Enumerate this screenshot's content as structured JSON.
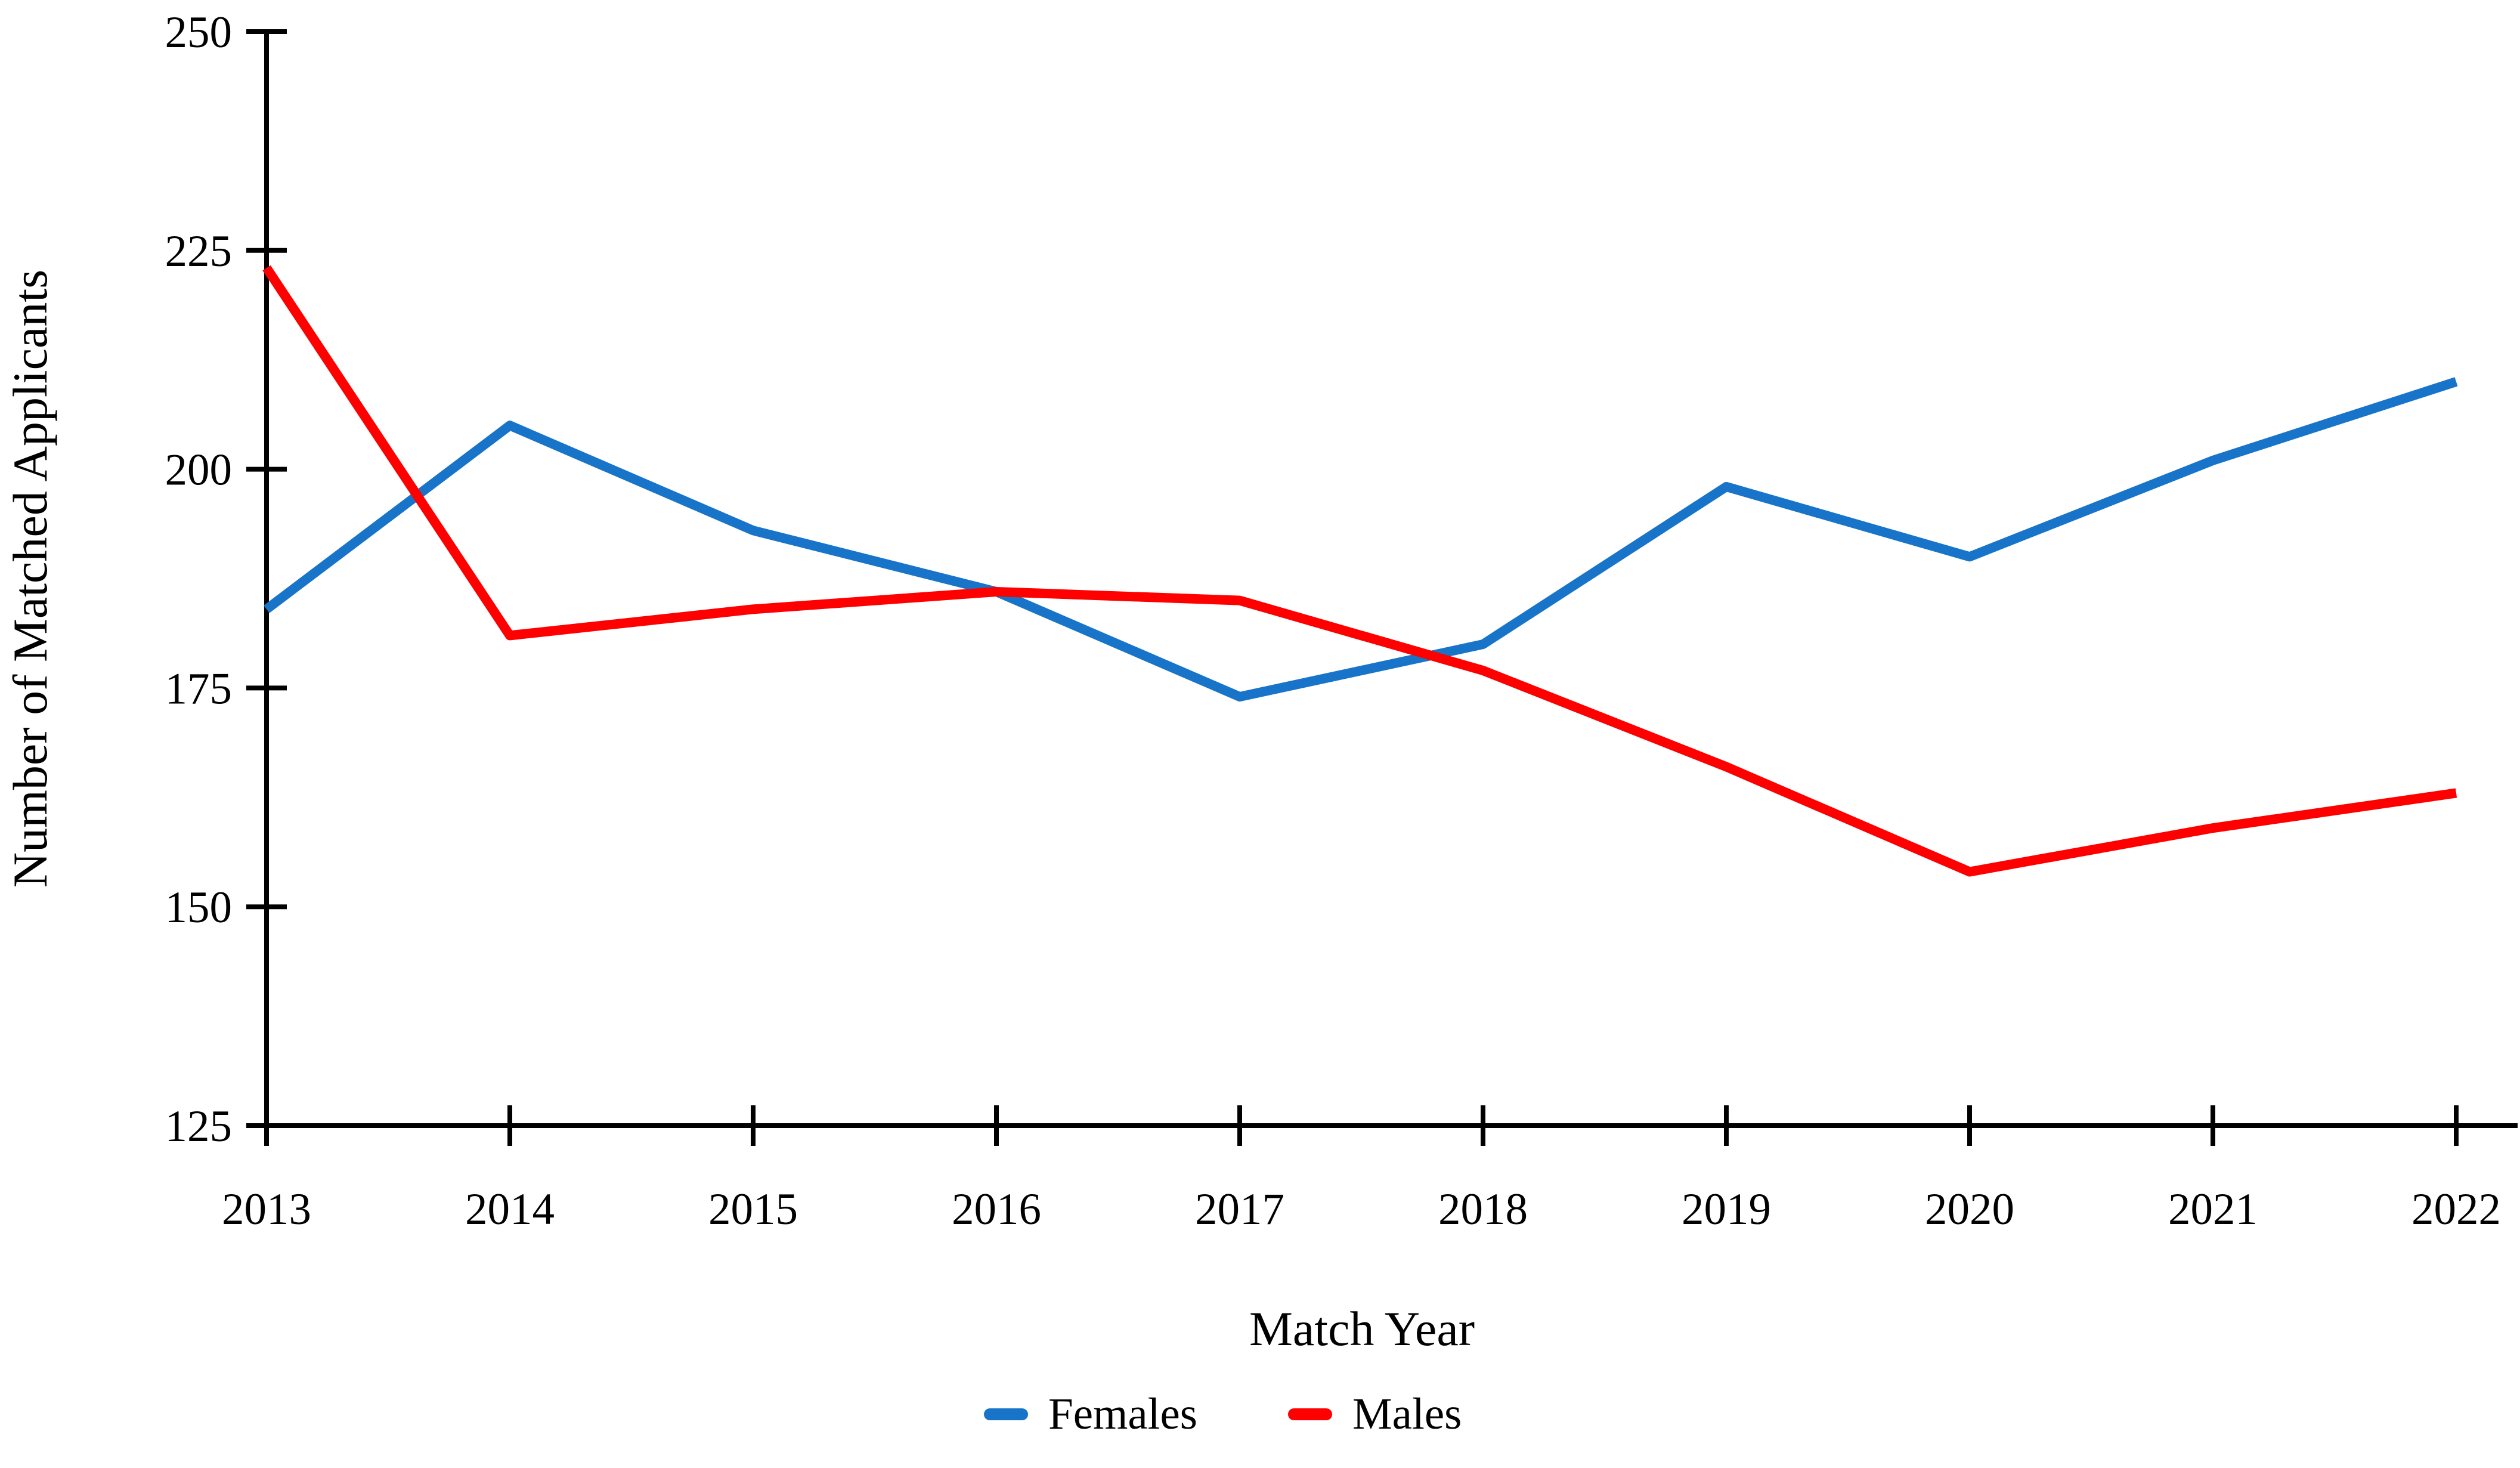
{
  "chart_data": {
    "type": "line",
    "title": "",
    "xlabel": "Match Year",
    "ylabel": "Number of Matched Applicants",
    "categories": [
      "2013",
      "2014",
      "2015",
      "2016",
      "2017",
      "2018",
      "2019",
      "2020",
      "2021",
      "2022"
    ],
    "series": [
      {
        "name": "Females",
        "color": "#1874C8",
        "values": [
          184,
          205,
          193,
          186,
          174,
          180,
          198,
          190,
          201,
          210
        ]
      },
      {
        "name": "Males",
        "color": "#FE0000",
        "values": [
          223,
          181,
          184,
          186,
          185,
          177,
          166,
          154,
          159,
          163
        ]
      }
    ],
    "ylim": [
      125,
      250
    ],
    "yticks": [
      125,
      150,
      175,
      200,
      225,
      250
    ],
    "grid": false,
    "legend_position": "bottom",
    "axis_color": "#000000"
  }
}
